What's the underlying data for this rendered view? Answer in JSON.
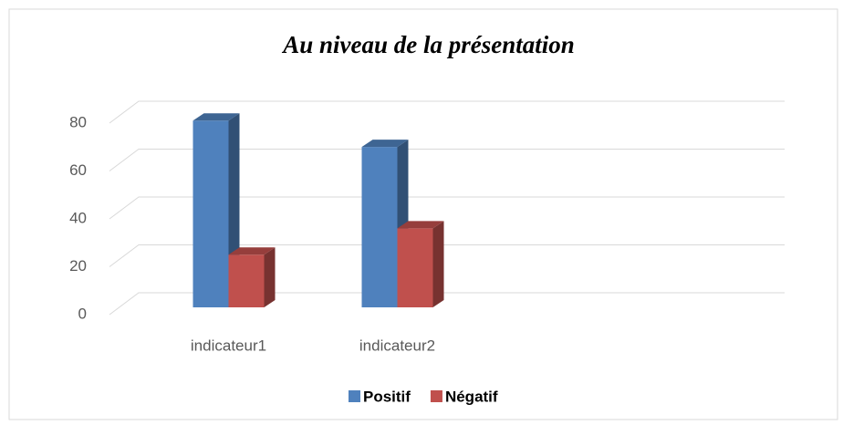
{
  "chart_data": {
    "type": "bar3d",
    "title": "Au niveau de la présentation",
    "categories": [
      "indicateur1",
      "indicateur2",
      null,
      null
    ],
    "series": [
      {
        "name": "Positif",
        "color": "#4f81bd",
        "values": [
          78,
          67,
          null,
          null
        ]
      },
      {
        "name": "Négatif",
        "color": "#c0504d",
        "values": [
          22,
          33,
          null,
          null
        ]
      }
    ],
    "ylim": [
      0,
      80
    ],
    "yticks": [
      0,
      20,
      40,
      60,
      80
    ],
    "grid": true,
    "legend": "bottom"
  }
}
